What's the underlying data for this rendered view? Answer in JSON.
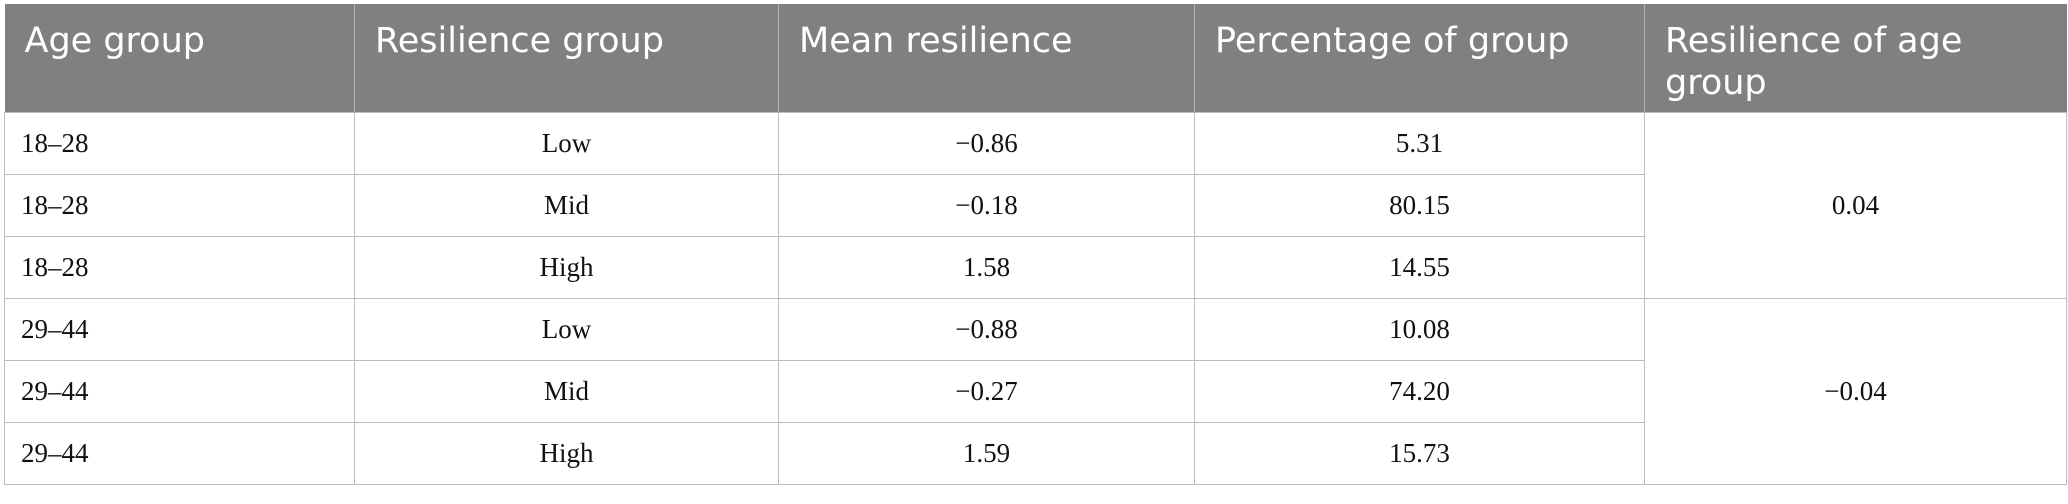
{
  "table": {
    "headers": [
      "Age group",
      "Resilience group",
      "Mean resilience",
      "Percentage of group",
      "Resilience of age group"
    ],
    "groups": [
      {
        "age_resilience": "0.04",
        "rows": [
          {
            "age": "18–28",
            "group": "Low",
            "mean": "−0.86",
            "pct": "5.31"
          },
          {
            "age": "18–28",
            "group": "Mid",
            "mean": "−0.18",
            "pct": "80.15"
          },
          {
            "age": "18–28",
            "group": "High",
            "mean": "1.58",
            "pct": "14.55"
          }
        ]
      },
      {
        "age_resilience": "−0.04",
        "rows": [
          {
            "age": "29–44",
            "group": "Low",
            "mean": "−0.88",
            "pct": "10.08"
          },
          {
            "age": "29–44",
            "group": "Mid",
            "mean": "−0.27",
            "pct": "74.20"
          },
          {
            "age": "29–44",
            "group": "High",
            "mean": "1.59",
            "pct": "15.73"
          }
        ]
      }
    ]
  }
}
